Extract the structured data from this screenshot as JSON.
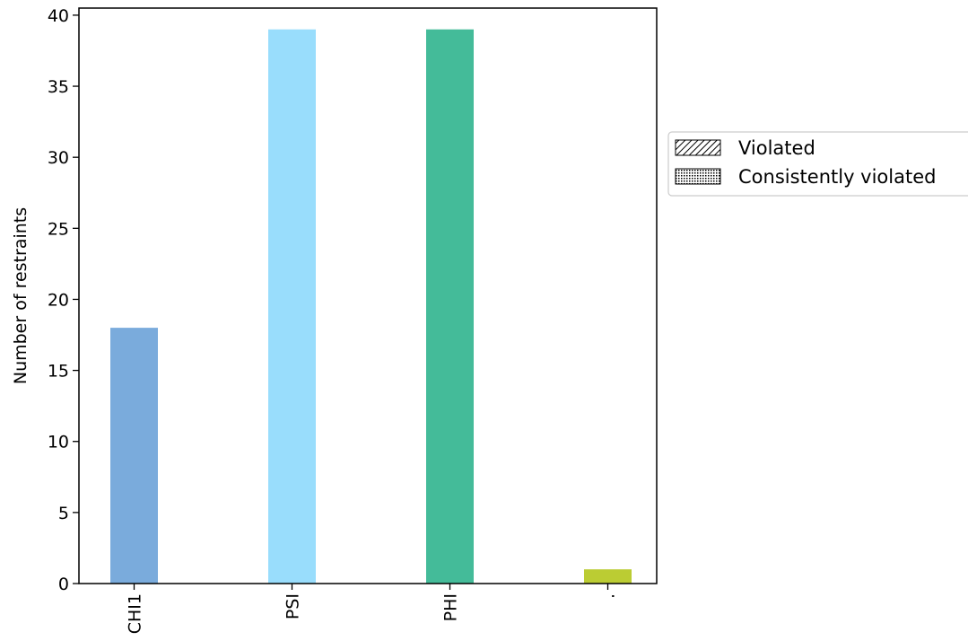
{
  "chart_data": {
    "type": "bar",
    "title": "",
    "xlabel": "",
    "ylabel": "Number of restraints",
    "categories": [
      "CHI1",
      "PSI",
      "PHI",
      "."
    ],
    "values": [
      18,
      39,
      39,
      1
    ],
    "colors": [
      "#7aabdc",
      "#99ddfc",
      "#44bb99",
      "#bbcc33"
    ],
    "ylim": [
      0,
      40.5
    ],
    "yticks": [
      0,
      5,
      10,
      15,
      20,
      25,
      30,
      35,
      40
    ],
    "grid": false,
    "legend": {
      "placement": "outside-right",
      "entries": [
        {
          "label": "Violated",
          "pattern": "hatch"
        },
        {
          "label": "Consistently violated",
          "pattern": "dots"
        }
      ]
    }
  }
}
